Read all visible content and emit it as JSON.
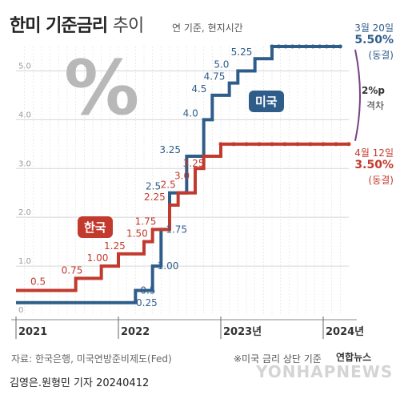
{
  "header": {
    "title": "한미 기준금리",
    "title_suffix": "추이",
    "subtitle": "연 기준, 현지시간"
  },
  "decor": {
    "percent_symbol": "%"
  },
  "labels": {
    "us_badge": "미국",
    "kr_badge": "한국",
    "us_end_date": "3월 20일",
    "us_end_value": "5.50%",
    "us_end_status": "(동결)",
    "kr_end_date": "4월 12일",
    "kr_end_value": "3.50%",
    "kr_end_status": "(동결)",
    "gap_value": "2%p",
    "gap_label": "격차"
  },
  "footer": {
    "source": "자료: 한국은행, 미국연방준비제도(Fed)",
    "note": "※미국 금리 상단 기준",
    "byline": "김영은.원형민 기자  20240412",
    "brand": "연합뉴스",
    "watermark": "YONHAPNEWS"
  },
  "colors": {
    "us": "#2f5d8a",
    "kr": "#c23a2e",
    "grid": "#d6d6d6",
    "axis_text": "#9a9a9a"
  },
  "chart_data": {
    "type": "line",
    "step": true,
    "title": "한미 기준금리 추이",
    "ylim": [
      0,
      5.5
    ],
    "xlim": [
      "2021-01",
      "2024-04"
    ],
    "y_ticks": [
      0,
      1.0,
      2.0,
      3.0,
      4.0,
      5.0
    ],
    "y_tick_labels": [
      "0",
      "1.0",
      "2.0",
      "3.0",
      "4.0",
      "5.0"
    ],
    "x_ticks": [
      "2021",
      "2022",
      "2023년",
      "2024년"
    ],
    "x_tick_dates": [
      "2021-01",
      "2022-01",
      "2023-01",
      "2024-01"
    ],
    "series": [
      {
        "name": "미국",
        "color": "#2f5d8a",
        "x": [
          "2021-01",
          "2022-03",
          "2022-05",
          "2022-06",
          "2022-07",
          "2022-09",
          "2022-11",
          "2022-12",
          "2023-02",
          "2023-03",
          "2023-05",
          "2023-07",
          "2024-03"
        ],
        "y": [
          0.25,
          0.5,
          1.0,
          1.75,
          2.5,
          3.25,
          4.0,
          4.5,
          4.75,
          5.0,
          5.25,
          5.5,
          5.5
        ],
        "labels": [
          "0.25",
          "0.5",
          "1.00",
          "1.75",
          "2.5",
          "3.25",
          "4.0",
          "4.5",
          "4.75",
          "5.0",
          "5.25",
          "",
          ""
        ]
      },
      {
        "name": "한국",
        "color": "#c23a2e",
        "x": [
          "2021-01",
          "2021-08",
          "2021-11",
          "2022-01",
          "2022-04",
          "2022-05",
          "2022-07",
          "2022-08",
          "2022-10",
          "2022-11",
          "2023-01",
          "2024-04"
        ],
        "y": [
          0.5,
          0.75,
          1.0,
          1.25,
          1.5,
          1.75,
          2.25,
          2.5,
          3.0,
          3.25,
          3.5,
          3.5
        ],
        "labels": [
          "0.5",
          "0.75",
          "1.00",
          "1.25",
          "1.50",
          "1.75",
          "2.25",
          "2.5",
          "3.0",
          "3.25",
          "",
          ""
        ]
      }
    ]
  }
}
